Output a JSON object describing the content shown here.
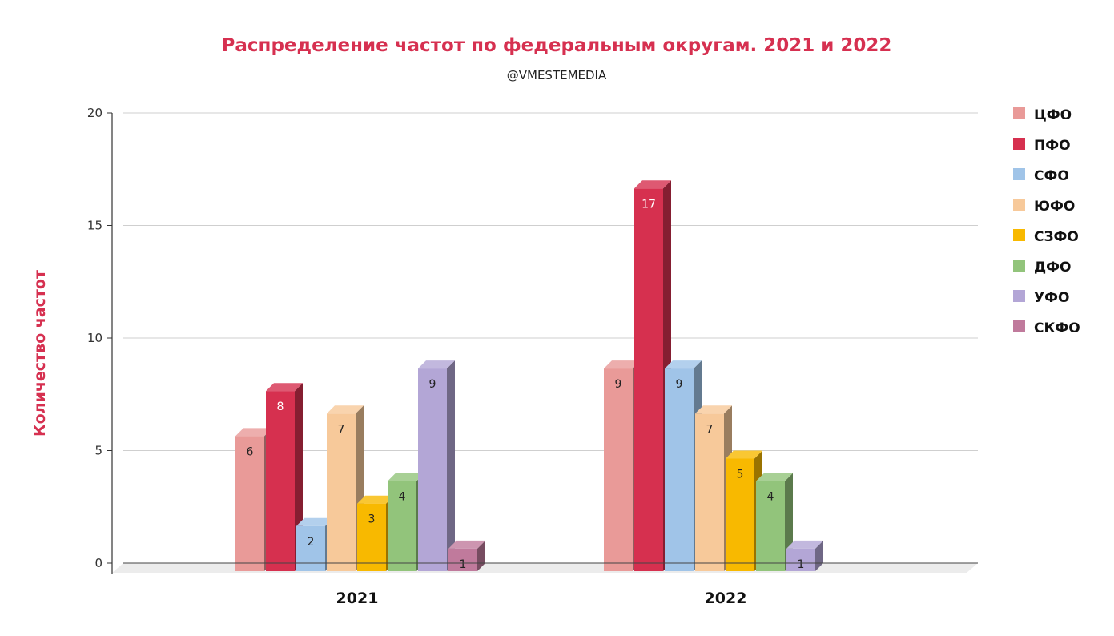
{
  "chart_data": {
    "type": "bar",
    "title": "Распределение частот по федеральным округам. 2021 и 2022",
    "subtitle": "@VMESTEMEDIA",
    "xlabel": "",
    "ylabel": "Количество частот",
    "ylim": [
      0,
      20
    ],
    "yticks": [
      0,
      5,
      10,
      15,
      20
    ],
    "grid": true,
    "legend_position": "right",
    "categories": [
      "2021",
      "2022"
    ],
    "series": [
      {
        "name": "ЦФО",
        "color": "#e99a98",
        "label_color": "#222222",
        "values": [
          6,
          9
        ]
      },
      {
        "name": "ПФО",
        "color": "#d6304f",
        "label_color": "#ffffff",
        "values": [
          8,
          17
        ]
      },
      {
        "name": "СФО",
        "color": "#a0c4e8",
        "label_color": "#222222",
        "values": [
          2,
          9
        ]
      },
      {
        "name": "ЮФО",
        "color": "#f7c99a",
        "label_color": "#222222",
        "values": [
          7,
          7
        ]
      },
      {
        "name": "СЗФО",
        "color": "#f8b900",
        "label_color": "#222222",
        "values": [
          3,
          5
        ]
      },
      {
        "name": "ДФО",
        "color": "#92c47b",
        "label_color": "#222222",
        "values": [
          4,
          4
        ]
      },
      {
        "name": "УФО",
        "color": "#b3a6d6",
        "label_color": "#222222",
        "values": [
          9,
          1
        ]
      },
      {
        "name": "СКФО",
        "color": "#c07a9c",
        "label_color": "#222222",
        "values": [
          1,
          null
        ]
      }
    ]
  }
}
